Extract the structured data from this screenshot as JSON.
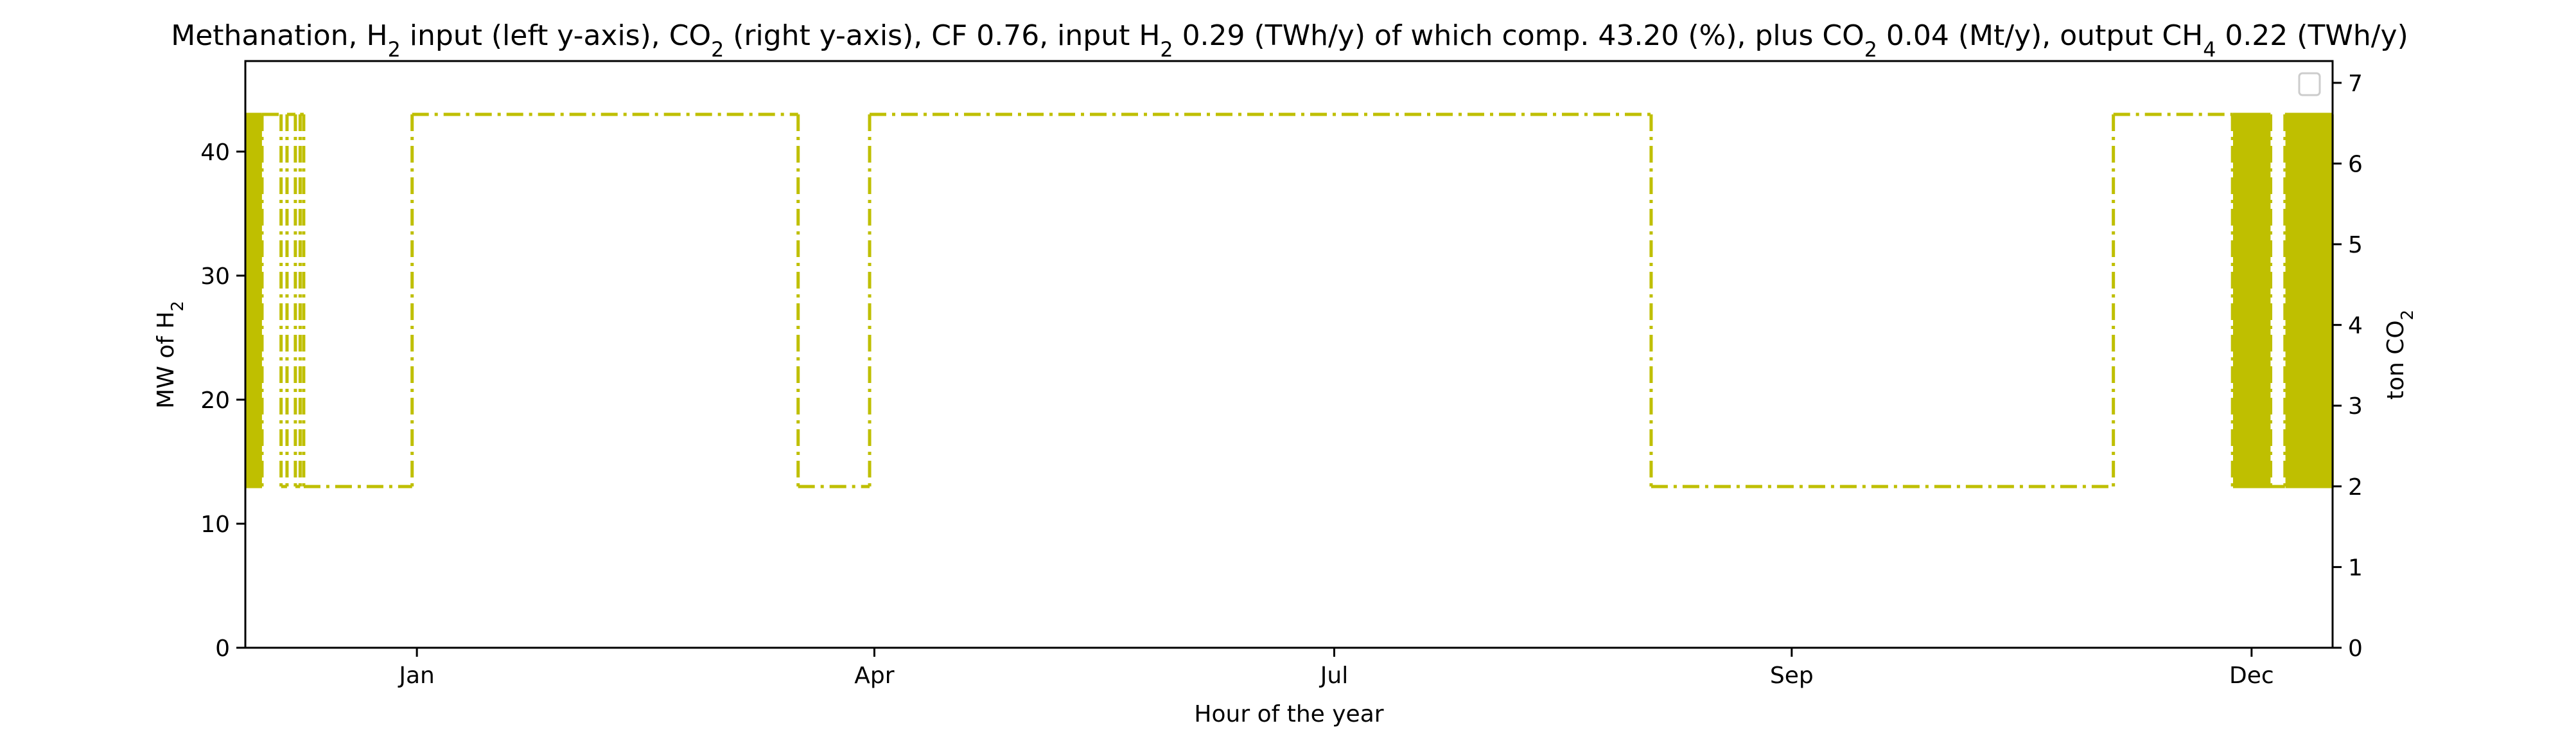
{
  "chart_data": {
    "type": "line",
    "title": {
      "parts": [
        {
          "t": "Methanation, H"
        },
        {
          "t": "2",
          "sub": true
        },
        {
          "t": " input (left y-axis), CO"
        },
        {
          "t": "2",
          "sub": true
        },
        {
          "t": " (right y-axis), CF 0.76, input H"
        },
        {
          "t": "2",
          "sub": true
        },
        {
          "t": " 0.29 (TWh/y) of which comp. 43.20 (%), plus CO"
        },
        {
          "t": "2",
          "sub": true
        },
        {
          "t": " 0.04 (Mt/y), output CH"
        },
        {
          "t": "4",
          "sub": true
        },
        {
          "t": " 0.22 (TWh/y)"
        }
      ]
    },
    "xlabel": "Hour of the year",
    "ylabel_left": {
      "parts": [
        {
          "t": "MW of H"
        },
        {
          "t": "2",
          "sub": true
        }
      ]
    },
    "ylabel_right": {
      "parts": [
        {
          "t": "ton CO"
        },
        {
          "t": "2",
          "sub": true
        }
      ]
    },
    "xlim": [
      0,
      8760
    ],
    "xticks": [
      {
        "value": 720,
        "label": "Jan"
      },
      {
        "value": 2640,
        "label": "Apr"
      },
      {
        "value": 4570,
        "label": "Jul"
      },
      {
        "value": 6490,
        "label": "Sep"
      },
      {
        "value": 8420,
        "label": "Dec"
      }
    ],
    "ylim_left": [
      0,
      47.3
    ],
    "yticks_left": [
      0,
      10,
      20,
      30,
      40
    ],
    "ylim_right": [
      0,
      7.27
    ],
    "yticks_right": [
      0,
      1,
      2,
      3,
      4,
      5,
      6,
      7
    ],
    "grid": false,
    "legend": {
      "placement": "top-right",
      "entries": []
    },
    "series": [
      {
        "axis": "left",
        "color": "#bfbf00",
        "linestyle": "dashdot",
        "high": 43,
        "low": 13,
        "segments": [
          [
            0,
            70,
            "osc"
          ],
          [
            70,
            150,
            "high"
          ],
          [
            150,
            175,
            "low"
          ],
          [
            175,
            210,
            "high"
          ],
          [
            210,
            230,
            "low"
          ],
          [
            230,
            245,
            "high"
          ],
          [
            245,
            700,
            "low"
          ],
          [
            700,
            2320,
            "high"
          ],
          [
            2320,
            2620,
            "low"
          ],
          [
            2620,
            5900,
            "high"
          ],
          [
            5900,
            7840,
            "low"
          ],
          [
            7840,
            8340,
            "high"
          ],
          [
            8340,
            8500,
            "osc"
          ],
          [
            8500,
            8560,
            "low"
          ],
          [
            8560,
            8760,
            "osc"
          ]
        ]
      }
    ]
  }
}
